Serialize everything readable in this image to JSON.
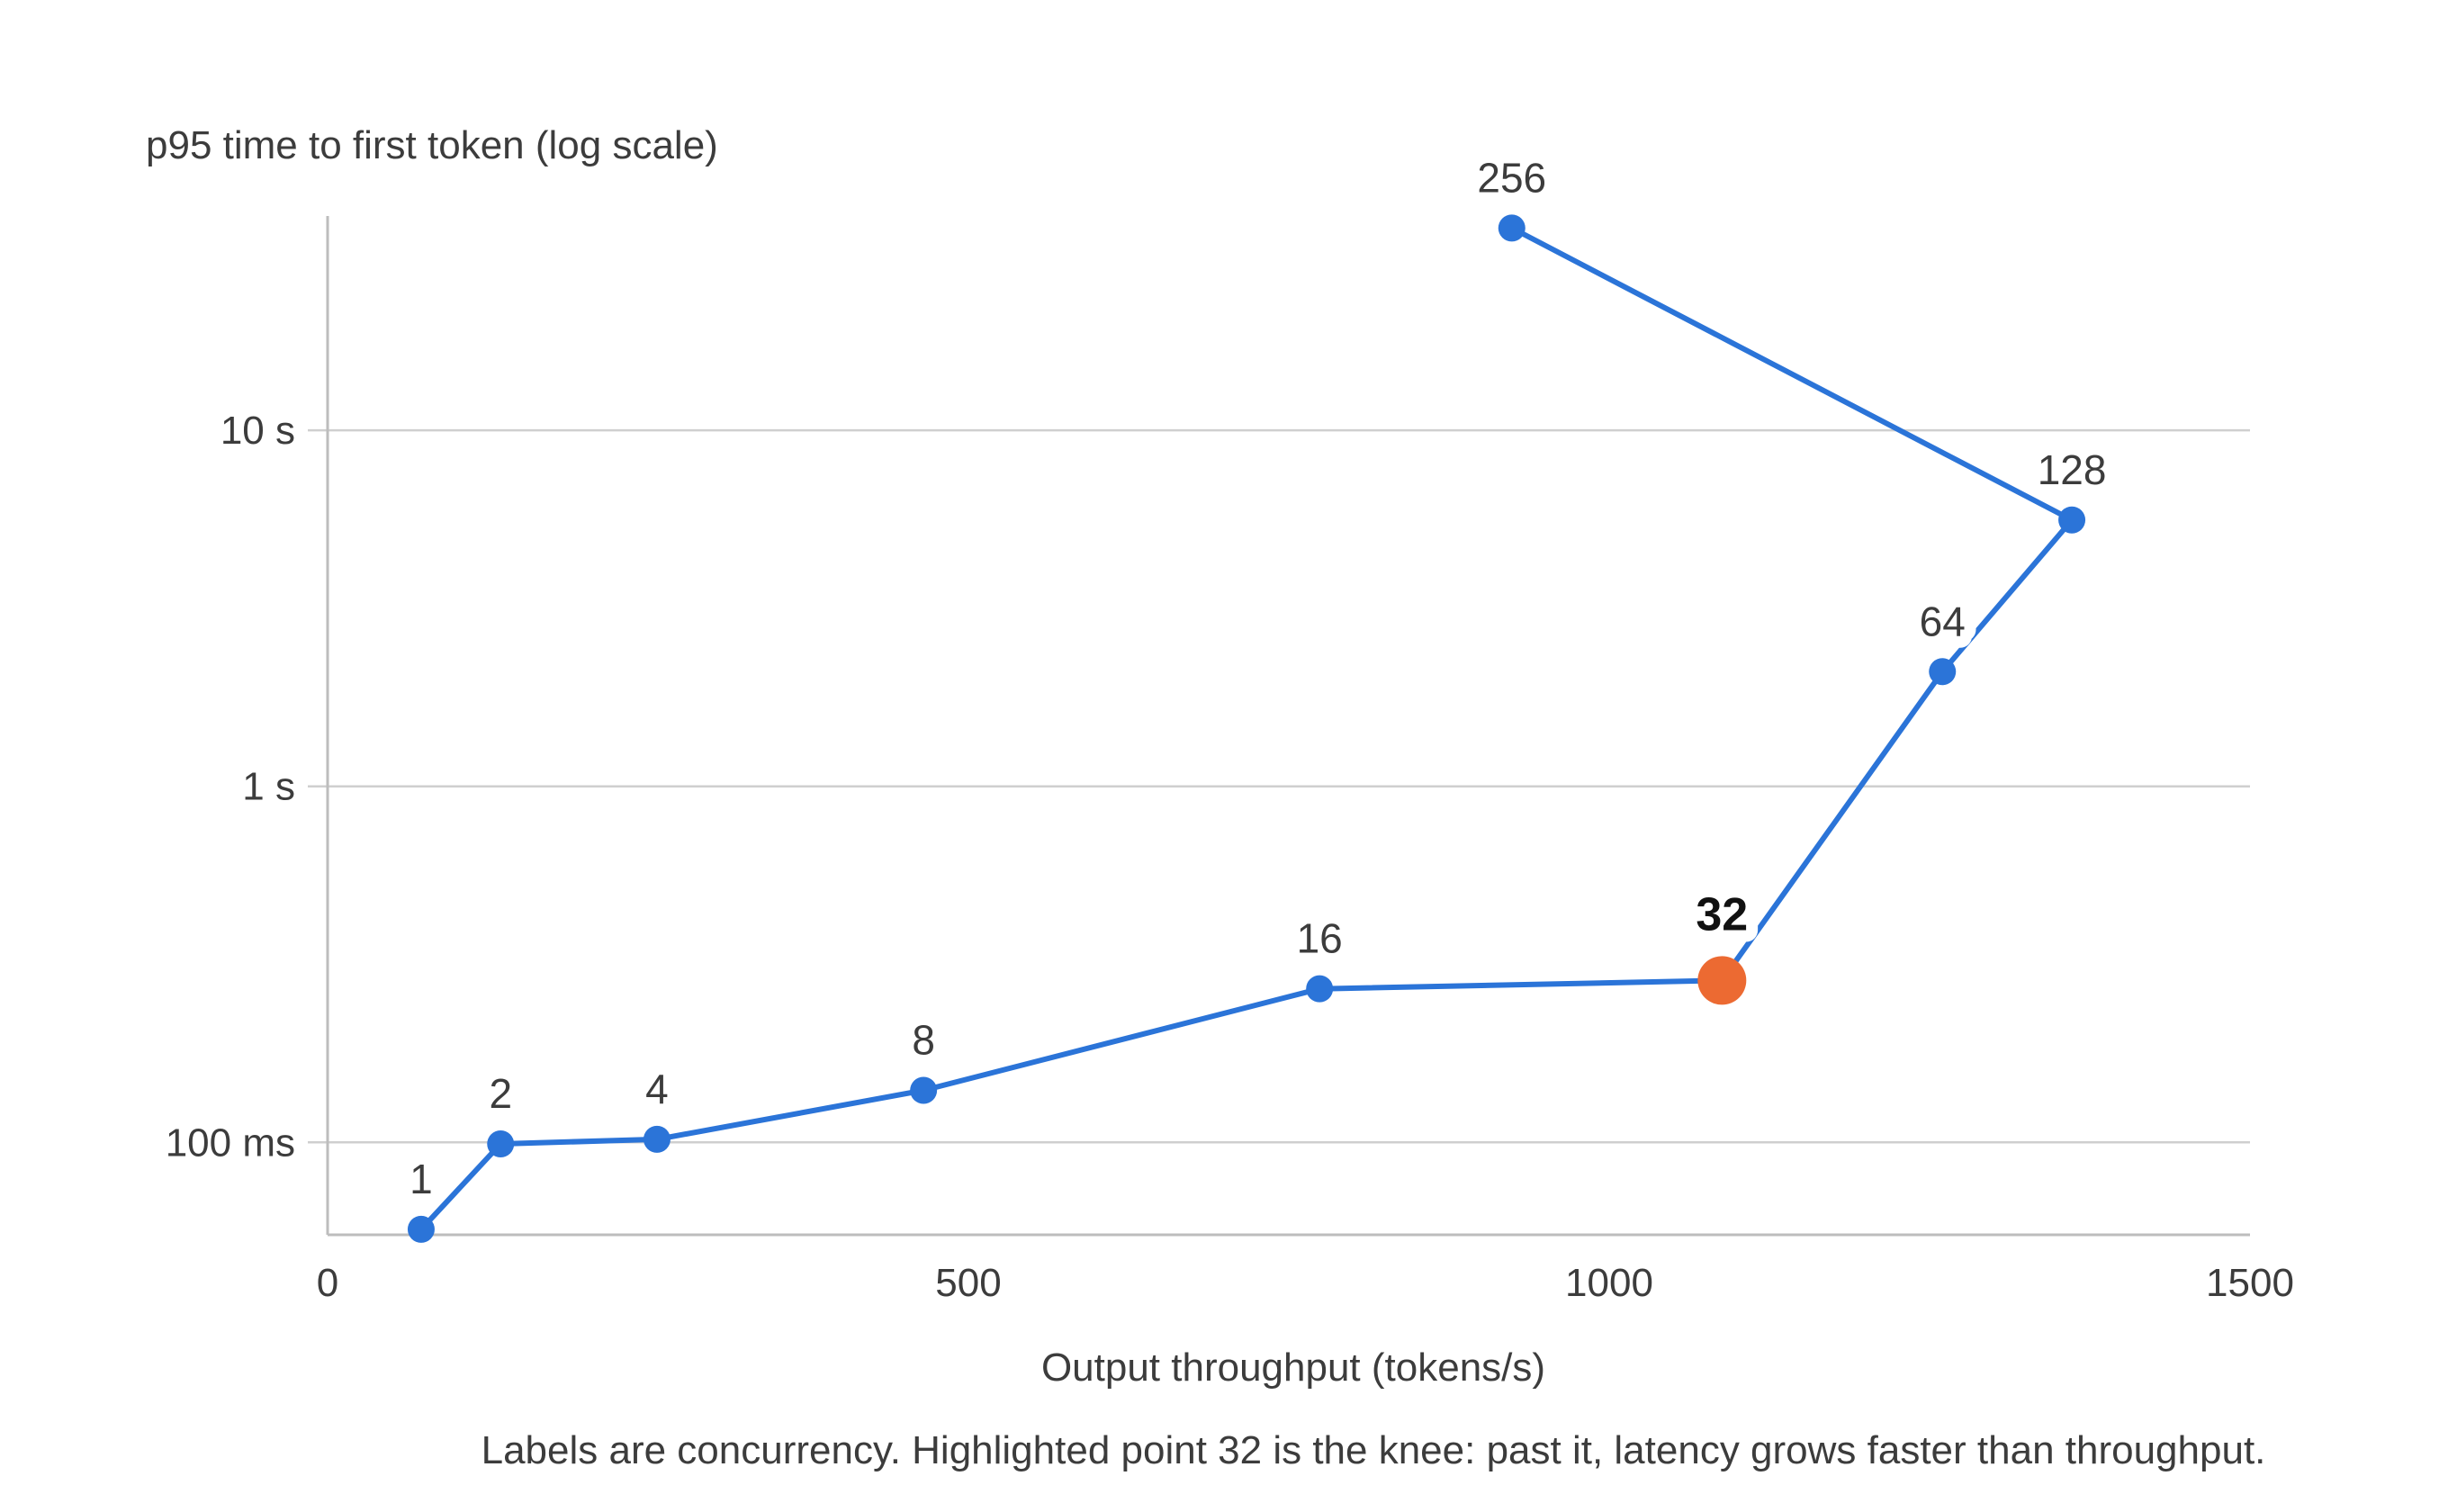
{
  "chart_data": {
    "type": "line",
    "ylabel": "p95 time to first token (log scale)",
    "xlabel": "Output throughput (tokens/s)",
    "caption": "Labels are concurrency. Highlighted point 32 is the knee: past it, latency grows faster than throughput.",
    "xlim": [
      0,
      1500
    ],
    "ylim_seconds": [
      0.055,
      40
    ],
    "yscale": "log",
    "grid": "horizontal",
    "x_ticks": [
      {
        "value": 0,
        "label": "0"
      },
      {
        "value": 500,
        "label": "500"
      },
      {
        "value": 1000,
        "label": "1000"
      },
      {
        "value": 1500,
        "label": "1500"
      }
    ],
    "y_ticks": [
      {
        "value": 0.1,
        "label": "100 ms"
      },
      {
        "value": 1,
        "label": "1 s"
      },
      {
        "value": 10,
        "label": "10 s"
      }
    ],
    "series": [
      {
        "color": "#2b74d8",
        "points": [
          {
            "label": "1",
            "x": 73,
            "y": 0.057
          },
          {
            "label": "2",
            "x": 135,
            "y": 0.099
          },
          {
            "label": "4",
            "x": 257,
            "y": 0.102
          },
          {
            "label": "8",
            "x": 465,
            "y": 0.14
          },
          {
            "label": "16",
            "x": 774,
            "y": 0.27
          },
          {
            "label": "32",
            "x": 1088,
            "y": 0.285,
            "highlight": true
          },
          {
            "label": "64",
            "x": 1260,
            "y": 2.1
          },
          {
            "label": "128",
            "x": 1361,
            "y": 5.6
          },
          {
            "label": "256",
            "x": 924,
            "y": 37
          }
        ]
      }
    ],
    "highlight_color": "#ec6a32"
  }
}
